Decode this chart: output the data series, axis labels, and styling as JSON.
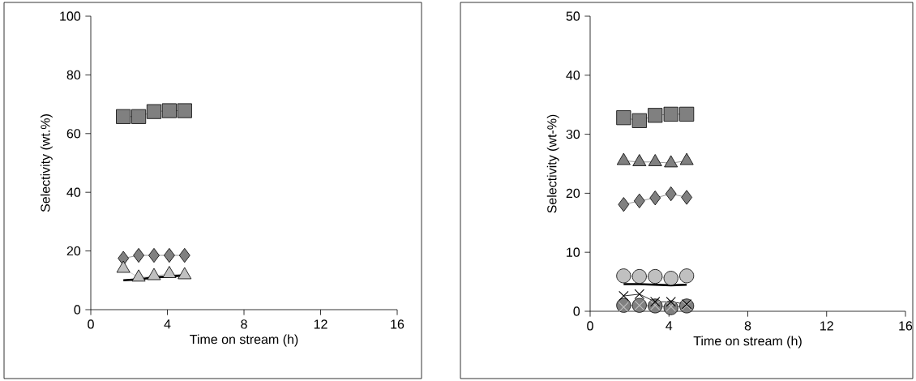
{
  "chart_data": [
    {
      "type": "line",
      "xlabel": "Time on stream (h)",
      "ylabel": "Selectivity (wt.%)",
      "xlim": [
        0,
        16
      ],
      "ylim": [
        0,
        100
      ],
      "xticks": [
        0,
        4,
        8,
        12,
        16
      ],
      "yticks": [
        0,
        20,
        40,
        60,
        80,
        100
      ],
      "grid": false,
      "line_style": "solid",
      "x": [
        1.7,
        2.5,
        3.3,
        4.1,
        4.9
      ],
      "series": [
        {
          "color": "#808080",
          "marker": "square",
          "values": [
            65.8,
            65.8,
            67.5,
            67.8,
            67.8
          ]
        },
        {
          "color": "#808080",
          "marker": "diamond",
          "values": [
            17.5,
            18.5,
            18.5,
            18.5,
            18.5
          ]
        },
        {
          "color": "#c0c0c0",
          "marker": "triangle",
          "values": [
            14,
            11,
            11.5,
            12.2,
            11.8
          ]
        },
        {
          "type": "line",
          "color": "#000000",
          "marker": "none",
          "values": [
            10,
            10.3,
            11,
            11.3,
            11.7
          ]
        }
      ]
    },
    {
      "type": "line",
      "xlabel": "Time on stream (h)",
      "ylabel": "Selectivity (wt-%)",
      "xlim": [
        0,
        16
      ],
      "ylim": [
        0,
        50
      ],
      "xticks": [
        0,
        4,
        8,
        12,
        16
      ],
      "yticks": [
        0,
        10,
        20,
        30,
        40,
        50
      ],
      "grid": false,
      "line_style": "solid",
      "x": [
        1.7,
        2.5,
        3.3,
        4.1,
        4.9
      ],
      "series": [
        {
          "color": "#808080",
          "marker": "square",
          "values": [
            32.8,
            32.3,
            33.2,
            33.4,
            33.4
          ]
        },
        {
          "color": "#808080",
          "marker": "triangle",
          "values": [
            25.5,
            25.3,
            25.3,
            25.1,
            25.5
          ]
        },
        {
          "color": "#808080",
          "marker": "diamond",
          "values": [
            18.1,
            18.7,
            19.2,
            19.9,
            19.3
          ]
        },
        {
          "color": "#c0c0c0",
          "marker": "circle",
          "values": [
            6.0,
            5.9,
            5.9,
            5.6,
            6.0
          ]
        },
        {
          "type": "line",
          "color": "#000000",
          "marker": "none",
          "values": [
            4.6,
            4.6,
            4.5,
            4.4,
            4.5
          ]
        },
        {
          "color": "#808080",
          "marker": "circle",
          "values": [
            1.0,
            1.0,
            0.9,
            0.6,
            0.9
          ]
        },
        {
          "color": "#c0c0c0",
          "marker": "cross",
          "values": [
            0.7,
            1.0,
            1.0,
            0.8,
            1.0
          ]
        },
        {
          "color": "#000000",
          "marker": "cross",
          "values": [
            2.6,
            2.9,
            1.6,
            1.6,
            1.2
          ]
        }
      ]
    }
  ]
}
